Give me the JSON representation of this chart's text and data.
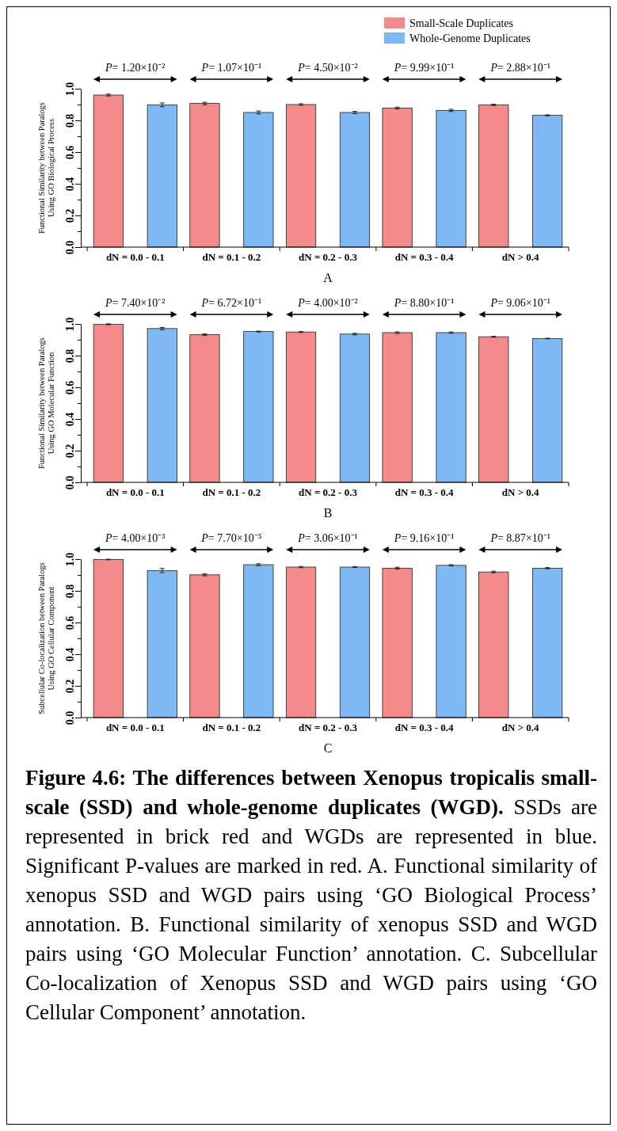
{
  "chart_data": [
    {
      "type": "bar",
      "xlabel": "A",
      "ylabel": "Functional Similarity between Paralogs\nUsing GO Biological Process",
      "categories": [
        "dN = 0.0 - 0.1",
        "dN = 0.1 - 0.2",
        "dN = 0.2 - 0.3",
        "dN = 0.3 - 0.4",
        "dN > 0.4"
      ],
      "series": [
        {
          "name": "Small-Scale Duplicates",
          "color": "#f48a8a",
          "values": [
            0.96,
            0.907,
            0.9,
            0.878,
            0.898
          ],
          "errors": [
            0.006,
            0.008,
            0.005,
            0.006,
            0.004
          ]
        },
        {
          "name": "Whole-Genome Duplicates",
          "color": "#7fb9f5",
          "values": [
            0.898,
            0.85,
            0.85,
            0.863,
            0.832
          ],
          "errors": [
            0.012,
            0.009,
            0.007,
            0.007,
            0.003
          ]
        }
      ],
      "ylim": [
        0,
        1
      ],
      "yticks": [
        {
          "value": 0,
          "label": "0.0"
        },
        {
          "value": 0.1,
          "label": null
        },
        {
          "value": 0.2,
          "label": "0.2"
        },
        {
          "value": 0.3,
          "label": null
        },
        {
          "value": 0.4,
          "label": "0.4"
        },
        {
          "value": 0.5,
          "label": null
        },
        {
          "value": 0.6,
          "label": "0.6"
        },
        {
          "value": 0.7,
          "label": null
        },
        {
          "value": 0.8,
          "label": "0.8"
        },
        {
          "value": 0.9,
          "label": null
        },
        {
          "value": 1,
          "label": "1.0"
        }
      ],
      "legend": "top right",
      "grid": false,
      "annotations": [
        "P= 1.20×10⁻²",
        "P= 1.07×10⁻¹",
        "P= 4.50×10⁻²",
        "P= 9.99×10⁻¹",
        "P= 2.88×10⁻¹"
      ]
    },
    {
      "type": "bar",
      "xlabel": "B",
      "ylabel": "Functional Similarity between Paralogs\nUsing GO Molecular Function",
      "categories": [
        "dN = 0.0 - 0.1",
        "dN = 0.1 - 0.2",
        "dN = 0.2 - 0.3",
        "dN = 0.3 - 0.4",
        "dN > 0.4"
      ],
      "series": [
        {
          "color": "#f48a8a",
          "values": [
            0.998,
            0.932,
            0.949,
            0.945,
            0.919
          ],
          "errors": [
            0.003,
            0.005,
            0.003,
            0.005,
            0.003
          ]
        },
        {
          "color": "#7fb9f5",
          "values": [
            0.971,
            0.952,
            0.936,
            0.945,
            0.908
          ],
          "errors": [
            0.007,
            0.003,
            0.005,
            0.004,
            0.002
          ]
        }
      ],
      "ylim": [
        0,
        1
      ],
      "yticks": [
        {
          "value": 0,
          "label": "0.0"
        },
        {
          "value": 0.1,
          "label": null
        },
        {
          "value": 0.2,
          "label": "0.2"
        },
        {
          "value": 0.3,
          "label": null
        },
        {
          "value": 0.4,
          "label": "0.4"
        },
        {
          "value": 0.5,
          "label": null
        },
        {
          "value": 0.6,
          "label": "0.6"
        },
        {
          "value": 0.7,
          "label": null
        },
        {
          "value": 0.8,
          "label": "0.8"
        },
        {
          "value": 0.9,
          "label": null
        },
        {
          "value": 1,
          "label": "1.0"
        }
      ],
      "grid": false,
      "annotations": [
        "P= 7.40×10⁻²",
        "P= 6.72×10⁻¹",
        "P= 4.00×10⁻²",
        "P= 8.80×10⁻¹",
        "P= 9.06×10⁻¹"
      ]
    },
    {
      "type": "bar",
      "xlabel": "C",
      "ylabel": "Subcellular Co-localization between Paralogs\nUsing GO Cellular Component",
      "categories": [
        "dN = 0.0 - 0.1",
        "dN = 0.1 - 0.2",
        "dN = 0.2 - 0.3",
        "dN = 0.3 - 0.4",
        "dN > 0.4"
      ],
      "series": [
        {
          "color": "#f48a8a",
          "values": [
            0.998,
            0.901,
            0.95,
            0.943,
            0.919
          ],
          "errors": [
            0.002,
            0.006,
            0.004,
            0.006,
            0.005
          ]
        },
        {
          "color": "#7fb9f5",
          "values": [
            0.928,
            0.965,
            0.95,
            0.961,
            0.943
          ],
          "errors": [
            0.013,
            0.006,
            0.003,
            0.004,
            0.004
          ]
        }
      ],
      "ylim": [
        0,
        1
      ],
      "yticks": [
        {
          "value": 0,
          "label": "0.0"
        },
        {
          "value": 0.1,
          "label": null
        },
        {
          "value": 0.2,
          "label": "0.2"
        },
        {
          "value": 0.3,
          "label": null
        },
        {
          "value": 0.4,
          "label": "0.4"
        },
        {
          "value": 0.5,
          "label": null
        },
        {
          "value": 0.6,
          "label": "0.6"
        },
        {
          "value": 0.7,
          "label": null
        },
        {
          "value": 0.8,
          "label": "0.8"
        },
        {
          "value": 0.9,
          "label": null
        },
        {
          "value": 1,
          "label": "1.0"
        }
      ],
      "grid": false,
      "annotations": [
        "P= 4.00×10⁻³",
        "P= 7.70×10⁻⁵",
        "P= 3.06×10⁻¹",
        "P= 9.16×10⁻¹",
        "P= 8.87×10⁻¹",
        "Figure 4.6: The differences between Xenopus tropicalis small-scale (SSD) and whole-genome duplicates (WGD).",
        "SSDs are represented in brick red and WGDs are represented in blue. Significant P-values are marked in red. A. Functional similarity of xenopus SSD and WGD pairs using ‘GO Biological Process’ annotation. B. Functional similarity of xenopus SSD and WGD pairs using ‘GO Molecular Function’ annotation. C. Subcellular Co-localization of Xenopus SSD and WGD pairs using ‘GO Cellular Component’ annotation."
      ]
    }
  ]
}
